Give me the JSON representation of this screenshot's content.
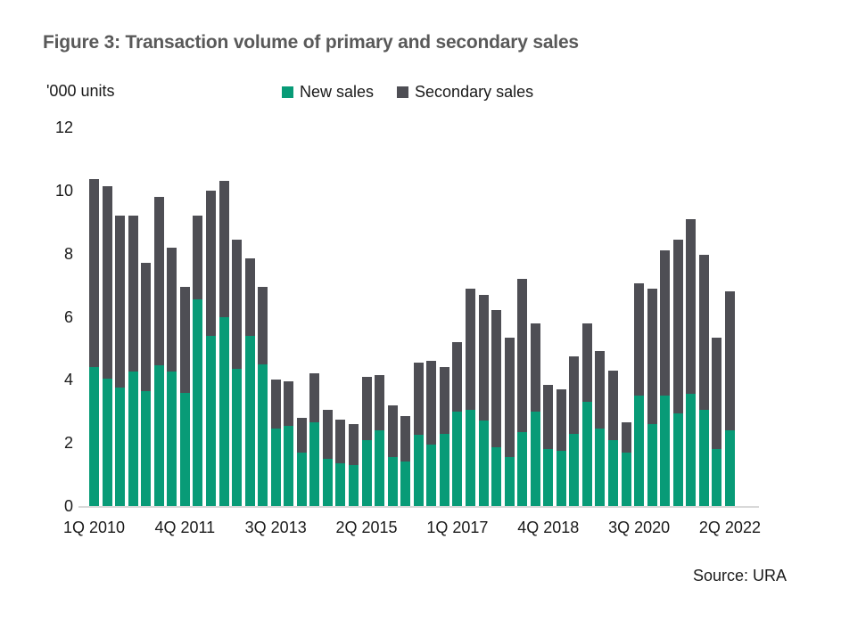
{
  "figure": {
    "title": "Figure 3: Transaction volume of primary and secondary sales",
    "source": "Source: URA"
  },
  "chart_data": {
    "type": "bar",
    "stacked": true,
    "title": "Figure 3: Transaction volume of primary and secondary sales",
    "units_label": "'000 units",
    "ylabel": "'000 units",
    "xlabel": "",
    "ylim": [
      0,
      12
    ],
    "y_ticks": [
      0,
      2,
      4,
      6,
      8,
      10,
      12
    ],
    "grid": false,
    "legend_position": "top",
    "x_tick_labels": [
      "1Q 2010",
      "4Q 2011",
      "3Q 2013",
      "2Q 2015",
      "1Q 2017",
      "4Q 2018",
      "3Q 2020",
      "2Q 2022"
    ],
    "x_tick_every": 7,
    "categories": [
      "1Q 2010",
      "2Q 2010",
      "3Q 2010",
      "4Q 2010",
      "1Q 2011",
      "2Q 2011",
      "3Q 2011",
      "4Q 2011",
      "1Q 2012",
      "2Q 2012",
      "3Q 2012",
      "4Q 2012",
      "1Q 2013",
      "2Q 2013",
      "3Q 2013",
      "4Q 2013",
      "1Q 2014",
      "2Q 2014",
      "3Q 2014",
      "4Q 2014",
      "1Q 2015",
      "2Q 2015",
      "3Q 2015",
      "4Q 2015",
      "1Q 2016",
      "2Q 2016",
      "3Q 2016",
      "4Q 2016",
      "1Q 2017",
      "2Q 2017",
      "3Q 2017",
      "4Q 2017",
      "1Q 2018",
      "2Q 2018",
      "3Q 2018",
      "4Q 2018",
      "1Q 2019",
      "2Q 2019",
      "3Q 2019",
      "4Q 2019",
      "1Q 2020",
      "2Q 2020",
      "3Q 2020",
      "4Q 2020",
      "1Q 2021",
      "2Q 2021",
      "3Q 2021",
      "4Q 2021",
      "1Q 2022",
      "2Q 2022"
    ],
    "series": [
      {
        "name": "New sales",
        "color": "#089b77",
        "values": [
          4.4,
          4.05,
          3.75,
          4.25,
          3.65,
          4.45,
          4.25,
          3.6,
          6.55,
          5.4,
          6.0,
          4.35,
          5.4,
          4.5,
          2.45,
          2.55,
          1.7,
          2.65,
          1.5,
          1.35,
          1.3,
          2.1,
          2.4,
          1.55,
          1.4,
          2.25,
          1.95,
          2.3,
          3.0,
          3.05,
          2.7,
          1.85,
          1.55,
          2.35,
          3.0,
          1.8,
          1.75,
          2.3,
          3.3,
          2.45,
          2.1,
          1.7,
          3.5,
          2.6,
          3.5,
          2.95,
          3.55,
          3.05,
          1.8,
          2.4
        ]
      },
      {
        "name": "Secondary sales",
        "color": "#4e4e54",
        "values": [
          5.95,
          6.1,
          5.45,
          4.95,
          4.05,
          5.35,
          3.95,
          3.35,
          2.65,
          4.6,
          4.3,
          4.1,
          2.45,
          2.45,
          1.55,
          1.4,
          1.1,
          1.55,
          1.55,
          1.4,
          1.3,
          2.0,
          1.75,
          1.65,
          1.45,
          2.3,
          2.65,
          2.1,
          2.2,
          3.85,
          4.0,
          4.35,
          3.8,
          4.85,
          2.8,
          2.05,
          1.95,
          2.45,
          2.5,
          2.45,
          2.2,
          0.95,
          3.55,
          4.3,
          4.6,
          5.5,
          5.55,
          4.9,
          3.55,
          4.4
        ]
      }
    ],
    "totals": [
      10.35,
      10.15,
      9.2,
      9.2,
      7.7,
      9.8,
      8.2,
      6.95,
      9.2,
      10.0,
      10.3,
      8.45,
      7.85,
      6.95,
      4.0,
      3.95,
      2.8,
      4.2,
      3.05,
      2.75,
      2.6,
      4.1,
      4.15,
      3.2,
      2.85,
      4.55,
      4.6,
      4.4,
      5.2,
      6.9,
      6.7,
      6.2,
      5.35,
      7.2,
      5.8,
      3.85,
      3.7,
      4.75,
      5.8,
      4.9,
      4.3,
      2.65,
      7.05,
      6.9,
      8.1,
      8.45,
      9.1,
      7.95,
      5.35,
      6.8
    ],
    "baseline_color": "#d9d9d9",
    "title_color": "#595959"
  }
}
